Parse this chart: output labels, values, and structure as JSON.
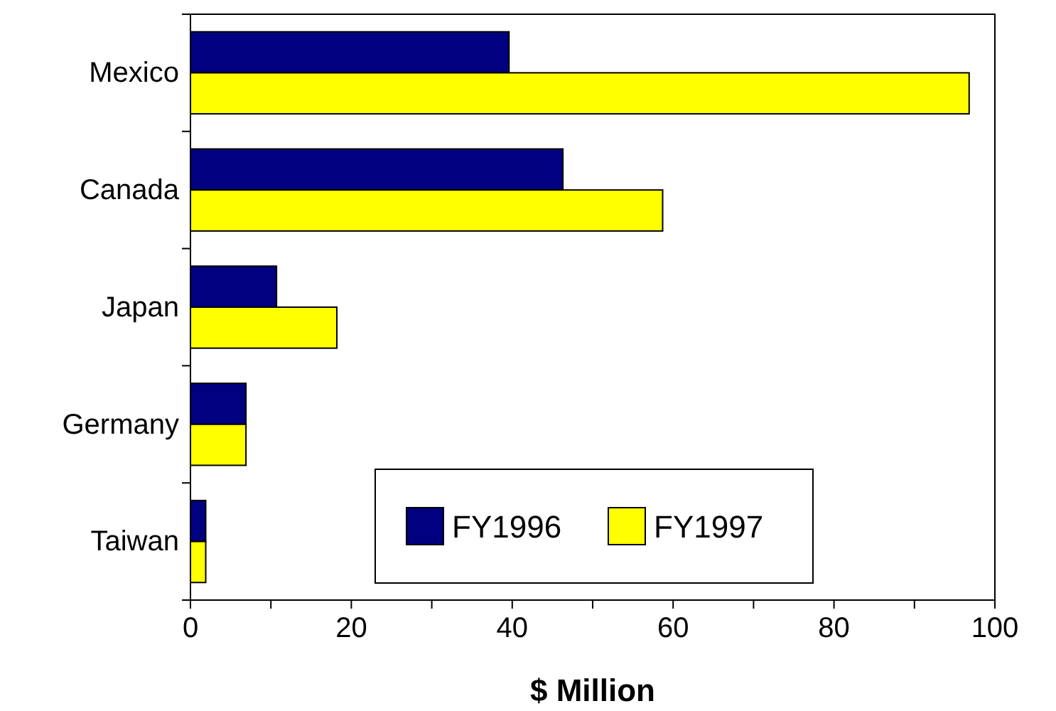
{
  "chart_data": {
    "type": "bar",
    "orientation": "horizontal",
    "xlabel": "$ Million",
    "categories": [
      "Mexico",
      "Canada",
      "Japan",
      "Germany",
      "Taiwan"
    ],
    "series": [
      {
        "name": "FY1996",
        "color": "#000080",
        "values": [
          39.6,
          46.3,
          10.7,
          6.9,
          1.9
        ]
      },
      {
        "name": "FY1997",
        "color": "#ffff00",
        "values": [
          96.8,
          58.7,
          18.2,
          6.9,
          1.9
        ]
      }
    ],
    "xlim": [
      0,
      100
    ],
    "xticks": [
      0,
      {
        "value": 10,
        "label": null
      },
      20,
      {
        "value": 30,
        "label": null
      },
      40,
      {
        "value": 50,
        "label": null
      },
      60,
      {
        "value": 70,
        "label": null
      },
      80,
      {
        "value": 90,
        "label": null
      },
      100
    ],
    "legend": "bottom right",
    "grid": false
  }
}
